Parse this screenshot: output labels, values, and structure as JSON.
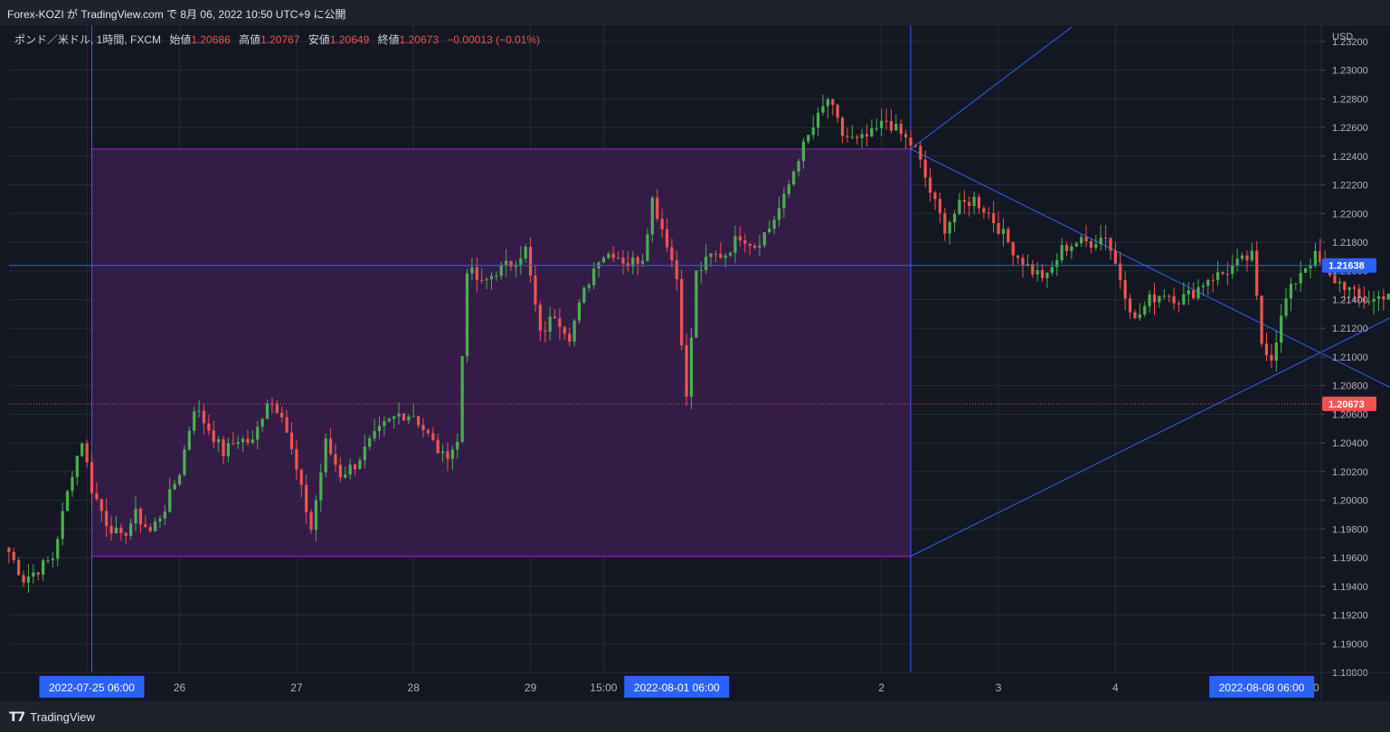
{
  "header": {
    "title": "Forex-KOZI が TradingView.com で 8月 06, 2022 10:50 UTC+9 に公開"
  },
  "legend": {
    "symbol": "ポンド／米ドル, 1時間, FXCM",
    "open_label": "始値",
    "open": "1.20686",
    "high_label": "高値",
    "high": "1.20767",
    "low_label": "安値",
    "low": "1.20649",
    "close_label": "終値",
    "close": "1.20673",
    "change": "−0.00013 (−0.01%)"
  },
  "price_axis": {
    "currency": "USD",
    "ticks": [
      "1.23200",
      "1.23000",
      "1.22800",
      "1.22600",
      "1.22400",
      "1.22200",
      "1.22000",
      "1.21800",
      "1.21600",
      "1.21400",
      "1.21200",
      "1.21000",
      "1.20800",
      "1.20600",
      "1.20400",
      "1.20200",
      "1.20000",
      "1.19800",
      "1.19600",
      "1.19400",
      "1.19200",
      "1.19000",
      "1.18800"
    ],
    "marker_line": "1.21638",
    "marker_last": "1.20673"
  },
  "time_axis": {
    "labels": [
      {
        "text": "5:00",
        "hour": -1
      },
      {
        "text": "26",
        "hour": 18
      },
      {
        "text": "27",
        "hour": 42
      },
      {
        "text": "28",
        "hour": 66
      },
      {
        "text": "29",
        "hour": 90
      },
      {
        "text": "15:00",
        "hour": 105
      },
      {
        "text": "2",
        "hour": 162
      },
      {
        "text": "3",
        "hour": 186
      },
      {
        "text": "4",
        "hour": 210
      },
      {
        "text": "5",
        "hour": 234
      },
      {
        "text": "15:00",
        "hour": 249
      }
    ],
    "highlights": [
      {
        "text": "2022-07-25   06:00",
        "hour": 0
      },
      {
        "text": "2022-08-01   06:00",
        "hour": 120
      },
      {
        "text": "2022-08-08   06:00",
        "hour": 240
      }
    ]
  },
  "brand": {
    "name": "TradingView"
  },
  "colors": {
    "background": "#131722",
    "up": "#4caf50",
    "down": "#f05350",
    "drawing": "#2962ff",
    "box_fill": "#3a1f4d",
    "box_border": "#9c27b0",
    "last_price": "#f05350",
    "grid": "#262a35"
  },
  "chart_data": {
    "type": "candlestick",
    "title": "ポンド／米ドル, 1時間, FXCM",
    "ylim": [
      1.188,
      1.233
    ],
    "x_unit": "hours since 2022-07-25 06:00",
    "grid": true,
    "horizontal_line": 1.21638,
    "last_price": 1.20673,
    "vertical_lines": [
      "2022-07-25 06:00",
      "2022-08-01 06:00",
      "2022-08-08 06:00"
    ],
    "rectangle": {
      "from": "2022-07-25 06:00",
      "to": "2022-08-01 06:00",
      "top": 1.2245,
      "bottom": 1.1961
    },
    "trend_lines": [
      {
        "from": [
          "2022-08-01 06:00",
          1.2245
        ],
        "to": [
          "2022-08-02 15:00",
          1.233
        ]
      },
      {
        "from": [
          "2022-08-01 06:00",
          1.2245
        ],
        "to": [
          "2022-08-08 06:00",
          1.1961
        ]
      },
      {
        "from": [
          "2022-08-01 06:00",
          1.1961
        ],
        "to": [
          "2022-08-08 06:00",
          1.2245
        ]
      }
    ],
    "ohlc_anchor_closes": [
      [
        -17,
        1.1964
      ],
      [
        -14,
        1.1945
      ],
      [
        -11,
        1.1952
      ],
      [
        -8,
        1.196
      ],
      [
        -4,
        1.202
      ],
      [
        -2,
        1.2042
      ],
      [
        0,
        1.2008
      ],
      [
        3,
        1.1985
      ],
      [
        6,
        1.1973
      ],
      [
        9,
        1.199
      ],
      [
        12,
        1.1978
      ],
      [
        15,
        1.1995
      ],
      [
        18,
        1.202
      ],
      [
        21,
        1.2065
      ],
      [
        24,
        1.205
      ],
      [
        27,
        1.2033
      ],
      [
        30,
        1.2043
      ],
      [
        33,
        1.204
      ],
      [
        36,
        1.207
      ],
      [
        39,
        1.2062
      ],
      [
        42,
        1.202
      ],
      [
        45,
        1.198
      ],
      [
        48,
        1.204
      ],
      [
        51,
        1.2018
      ],
      [
        54,
        1.2025
      ],
      [
        57,
        1.204
      ],
      [
        60,
        1.2052
      ],
      [
        63,
        1.206
      ],
      [
        66,
        1.206
      ],
      [
        69,
        1.2045
      ],
      [
        72,
        1.203
      ],
      [
        75,
        1.204
      ],
      [
        77,
        1.2162
      ],
      [
        80,
        1.215
      ],
      [
        83,
        1.216
      ],
      [
        86,
        1.2165
      ],
      [
        89,
        1.2175
      ],
      [
        92,
        1.2115
      ],
      [
        95,
        1.213
      ],
      [
        98,
        1.2115
      ],
      [
        101,
        1.2145
      ],
      [
        104,
        1.217
      ],
      [
        107,
        1.2173
      ],
      [
        110,
        1.2165
      ],
      [
        113,
        1.217
      ],
      [
        115,
        1.221
      ],
      [
        118,
        1.218
      ],
      [
        120,
        1.2155
      ],
      [
        122,
        1.207
      ],
      [
        124,
        1.2158
      ],
      [
        127,
        1.217
      ],
      [
        130,
        1.2172
      ],
      [
        133,
        1.2185
      ],
      [
        136,
        1.2178
      ],
      [
        139,
        1.219
      ],
      [
        142,
        1.221
      ],
      [
        145,
        1.224
      ],
      [
        148,
        1.226
      ],
      [
        151,
        1.228
      ],
      [
        154,
        1.2255
      ],
      [
        157,
        1.225
      ],
      [
        160,
        1.2255
      ],
      [
        163,
        1.2265
      ],
      [
        166,
        1.2255
      ],
      [
        169,
        1.2245
      ],
      [
        172,
        1.2215
      ],
      [
        175,
        1.219
      ],
      [
        178,
        1.2205
      ],
      [
        181,
        1.221
      ],
      [
        184,
        1.22
      ],
      [
        187,
        1.2185
      ],
      [
        190,
        1.217
      ],
      [
        193,
        1.216
      ],
      [
        196,
        1.2155
      ],
      [
        199,
        1.2175
      ],
      [
        202,
        1.218
      ],
      [
        205,
        1.218
      ],
      [
        208,
        1.2185
      ],
      [
        211,
        1.2155
      ],
      [
        214,
        1.2125
      ],
      [
        217,
        1.214
      ],
      [
        220,
        1.2145
      ],
      [
        223,
        1.214
      ],
      [
        226,
        1.2145
      ],
      [
        229,
        1.2155
      ],
      [
        232,
        1.2158
      ],
      [
        235,
        1.2165
      ],
      [
        238,
        1.217
      ],
      [
        240,
        1.211
      ],
      [
        242,
        1.21
      ],
      [
        245,
        1.214
      ],
      [
        248,
        1.216
      ],
      [
        251,
        1.217
      ],
      [
        254,
        1.2155
      ],
      [
        257,
        1.215
      ],
      [
        260,
        1.214
      ],
      [
        263,
        1.214
      ],
      [
        266,
        1.2145
      ],
      [
        269,
        1.215
      ],
      [
        272,
        1.2135
      ],
      [
        274,
        1.2025
      ],
      [
        276,
        1.205
      ],
      [
        278,
        1.207
      ],
      [
        281,
        1.2067
      ]
    ]
  }
}
